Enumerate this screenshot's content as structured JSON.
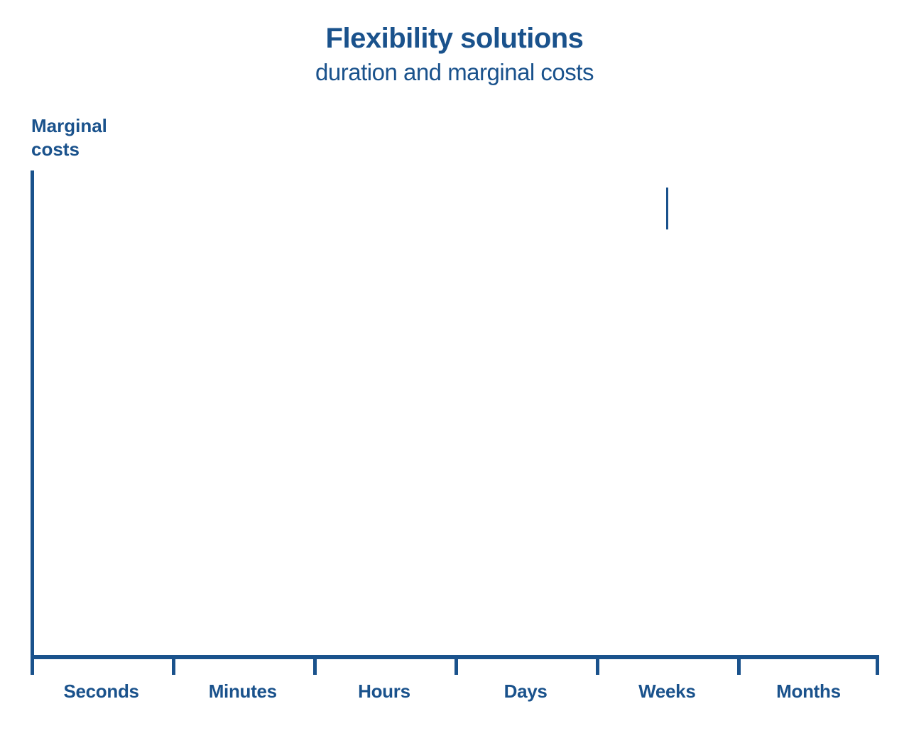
{
  "colors": {
    "primary_blue": "#1a528c",
    "background": "#ffffff"
  },
  "chart_data": {
    "type": "scatter",
    "title": "Flexibility solutions",
    "subtitle": "duration and marginal costs",
    "ylabel": "Marginal costs",
    "ylabel_display": "Marginal\ncosts",
    "xlabel": "",
    "categories": [
      "Seconds",
      "Minutes",
      "Hours",
      "Days",
      "Weeks",
      "Months"
    ],
    "series": [],
    "axes": {
      "x_type": "category",
      "x_tick_count": 7,
      "y_tick_labels": [],
      "grid": false,
      "legend": false
    },
    "annotations": [
      {
        "shape": "vertical-line-segment",
        "x_category": "Weeks",
        "vertical_position": "upper plot area"
      }
    ]
  }
}
